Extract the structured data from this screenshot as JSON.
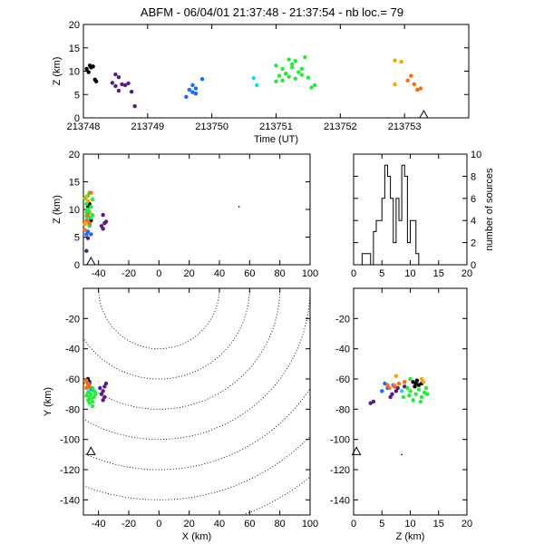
{
  "title": "ABFM - 06/04/01 21:37:48 - 21:37:54 - nb loc.=      79",
  "colors": {
    "black": "#000000",
    "purple": "#5a1a8a",
    "blue": "#1a6aff",
    "cyan": "#11ddee",
    "green": "#22ee33",
    "orange": "#ffa000",
    "red_orange": "#ff6a10"
  },
  "chart_data": [
    {
      "type": "scatter",
      "title": "",
      "xlabel": "Time (UT)",
      "ylabel": "Z (km)",
      "xlim": [
        213748,
        213754
      ],
      "ylim": [
        0,
        20
      ],
      "xticks": [
        "213748",
        "213749",
        "213750",
        "213751",
        "213752",
        "213753"
      ],
      "yticks": [
        "0",
        "5",
        "10",
        "15",
        "20"
      ],
      "marker": {
        "x": 213753.3,
        "y": 0
      },
      "series": [
        {
          "color": "black",
          "points": [
            [
              213748.05,
              10.5
            ],
            [
              213748.1,
              11.2
            ],
            [
              213748.15,
              11
            ],
            [
              213748.12,
              10.8
            ],
            [
              213748.08,
              9.8
            ],
            [
              213748.2,
              7.8
            ],
            [
              213748.18,
              8.2
            ]
          ]
        },
        {
          "color": "purple",
          "points": [
            [
              213748.5,
              9.3
            ],
            [
              213748.55,
              8.7
            ],
            [
              213748.45,
              7.5
            ],
            [
              213748.6,
              7.2
            ],
            [
              213748.5,
              6.8
            ],
            [
              213748.65,
              7
            ],
            [
              213748.7,
              7.4
            ],
            [
              213748.55,
              5.8
            ],
            [
              213748.75,
              5.6
            ],
            [
              213748.8,
              2.5
            ]
          ]
        },
        {
          "color": "blue",
          "points": [
            [
              213749.7,
              7
            ],
            [
              213749.75,
              6.3
            ],
            [
              213749.65,
              6
            ],
            [
              213749.7,
              5.5
            ],
            [
              213749.75,
              5.2
            ],
            [
              213749.85,
              8.3
            ],
            [
              213749.6,
              4.5
            ]
          ]
        },
        {
          "color": "cyan",
          "points": [
            [
              213750.65,
              8.5
            ],
            [
              213750.7,
              7
            ]
          ]
        },
        {
          "color": "green",
          "points": [
            [
              213751.2,
              12.5
            ],
            [
              213751.3,
              12.2
            ],
            [
              213751.45,
              13
            ],
            [
              213751.0,
              11.2
            ],
            [
              213751.1,
              10.5
            ],
            [
              213751.25,
              10.8
            ],
            [
              213751.35,
              9.8
            ],
            [
              213751.15,
              9.5
            ],
            [
              213751.05,
              9
            ],
            [
              213751.4,
              9.2
            ],
            [
              213751.5,
              8.6
            ],
            [
              213751.3,
              8.4
            ],
            [
              213751.2,
              8.8
            ],
            [
              213751.6,
              7
            ],
            [
              213751.55,
              6.5
            ],
            [
              213751.0,
              7.8
            ],
            [
              213751.1,
              8
            ],
            [
              213751.4,
              10.5
            ],
            [
              213751.25,
              11.5
            ]
          ]
        },
        {
          "color": "orange",
          "points": [
            [
              213752.85,
              12.3
            ],
            [
              213752.95,
              12
            ],
            [
              213752.85,
              7.2
            ]
          ]
        },
        {
          "color": "red_orange",
          "points": [
            [
              213753.1,
              9
            ],
            [
              213753.05,
              8
            ],
            [
              213753.15,
              7.2
            ],
            [
              213753.2,
              6
            ],
            [
              213753.25,
              6.3
            ]
          ]
        }
      ]
    },
    {
      "type": "scatter",
      "title": "",
      "xlabel": "",
      "ylabel": "Z (km)",
      "xlim": [
        -50,
        100
      ],
      "ylim": [
        0,
        20
      ],
      "xticks": [
        "-40",
        "-20",
        "0",
        "20",
        "40",
        "60",
        "80",
        "100"
      ],
      "yticks": [
        "0",
        "5",
        "10",
        "15",
        "20"
      ],
      "marker": {
        "x": -45,
        "y": 0
      },
      "series": [
        {
          "color": "black",
          "points": [
            [
              -47,
              10.5
            ],
            [
              -46,
              11
            ],
            [
              -45,
              8
            ]
          ]
        },
        {
          "color": "purple",
          "points": [
            [
              -37,
              9
            ],
            [
              -36,
              7.5
            ],
            [
              -38,
              7
            ],
            [
              -35,
              7.8
            ],
            [
              -37,
              6.5
            ],
            [
              -47,
              4.8
            ],
            [
              -48,
              2.5
            ],
            [
              -46,
              7.2
            ]
          ]
        },
        {
          "color": "blue",
          "points": [
            [
              -46,
              7
            ],
            [
              -47,
              6
            ],
            [
              -45,
              5.5
            ],
            [
              -48,
              5.5
            ]
          ]
        },
        {
          "color": "cyan",
          "points": [
            [
              -47,
              8.5
            ]
          ]
        },
        {
          "color": "green",
          "points": [
            [
              -47,
              12.5
            ],
            [
              -46,
              13
            ],
            [
              -44,
              11.8
            ],
            [
              -48,
              11
            ],
            [
              -45,
              10.5
            ],
            [
              -47,
              10
            ],
            [
              -46,
              9.5
            ],
            [
              -44,
              9
            ],
            [
              -48,
              8.8
            ],
            [
              -45,
              8.5
            ],
            [
              -47,
              7.8
            ],
            [
              -46,
              7
            ],
            [
              -49,
              12
            ],
            [
              -48,
              9.5
            ]
          ]
        },
        {
          "color": "orange",
          "points": [
            [
              -48,
              12.3
            ],
            [
              -47,
              11.5
            ],
            [
              -49,
              7.3
            ]
          ]
        },
        {
          "color": "red_orange",
          "points": [
            [
              -47,
              9
            ],
            [
              -48,
              8
            ],
            [
              -46,
              7.5
            ],
            [
              -49,
              6.3
            ],
            [
              -45,
              13
            ]
          ]
        }
      ],
      "extra_points": [
        {
          "color": "black",
          "x": 53,
          "y": 10.5
        }
      ]
    },
    {
      "type": "bar",
      "title": "",
      "xlabel": "",
      "ylabel": "number of sources",
      "xlim": [
        0,
        20
      ],
      "ylim": [
        0,
        10
      ],
      "xticks": [
        "0",
        "5",
        "10",
        "15",
        "20"
      ],
      "yticks": [
        "0",
        "2",
        "4",
        "6",
        "8",
        "10"
      ],
      "bin_width": 0.5,
      "bins_start": 1.5,
      "values": [
        1,
        1,
        1,
        0,
        3,
        4,
        4,
        6,
        9,
        8,
        6,
        2,
        6,
        4,
        9,
        8,
        2,
        4,
        4,
        1
      ]
    },
    {
      "type": "scatter",
      "title": "",
      "xlabel": "X (km)",
      "ylabel": "Y (km)",
      "xlim": [
        -50,
        100
      ],
      "ylim": [
        -150,
        0
      ],
      "xticks": [
        "-40",
        "-20",
        "0",
        "20",
        "40",
        "60",
        "80",
        "100"
      ],
      "yticks": [
        "-140",
        "-120",
        "-100",
        "-80",
        "-60",
        "-40",
        "-20"
      ],
      "marker": {
        "x": -45,
        "y": -110
      },
      "range_rings_km": [
        40,
        60,
        80,
        100,
        120,
        140,
        160
      ],
      "ring_center": {
        "x": 0,
        "y": 0
      },
      "series": [
        {
          "color": "black",
          "points": [
            [
              -47,
              -60
            ],
            [
              -46,
              -62
            ]
          ]
        },
        {
          "color": "purple",
          "points": [
            [
              -36,
              -65
            ],
            [
              -37,
              -68
            ],
            [
              -38,
              -70
            ],
            [
              -36,
              -72
            ],
            [
              -39,
              -66
            ],
            [
              -35,
              -63
            ],
            [
              -37,
              -74
            ]
          ]
        },
        {
          "color": "blue",
          "points": [
            [
              -46,
              -63
            ],
            [
              -47,
              -65
            ],
            [
              -45,
              -67
            ]
          ]
        },
        {
          "color": "cyan",
          "points": [
            [
              -46,
              -68
            ]
          ]
        },
        {
          "color": "green",
          "points": [
            [
              -44,
              -66
            ],
            [
              -45,
              -70
            ],
            [
              -46,
              -72
            ],
            [
              -47,
              -74
            ],
            [
              -43,
              -68
            ],
            [
              -44,
              -75
            ],
            [
              -46,
              -76
            ],
            [
              -45,
              -73
            ],
            [
              -47,
              -69
            ],
            [
              -48,
              -71
            ],
            [
              -43,
              -72
            ],
            [
              -44,
              -78
            ],
            [
              -42,
              -70
            ]
          ]
        },
        {
          "color": "orange",
          "points": [
            [
              -48,
              -62
            ],
            [
              -47,
              -64
            ]
          ]
        },
        {
          "color": "red_orange",
          "points": [
            [
              -48,
              -61
            ],
            [
              -47,
              -63
            ],
            [
              -46,
              -65
            ],
            [
              -48,
              -66
            ]
          ]
        }
      ]
    },
    {
      "type": "scatter",
      "title": "",
      "xlabel": "Z (km)",
      "ylabel": "",
      "xlim": [
        0,
        20
      ],
      "ylim": [
        -150,
        0
      ],
      "xticks": [
        "0",
        "5",
        "10",
        "15",
        "20"
      ],
      "yticks": [
        "-140",
        "-120",
        "-100",
        "-80",
        "-60",
        "-40",
        "-20"
      ],
      "marker": {
        "x": 0.5,
        "y": -110
      },
      "series": [
        {
          "color": "black",
          "points": [
            [
              10.5,
              -62
            ],
            [
              11,
              -63
            ],
            [
              11.5,
              -64
            ],
            [
              10.8,
              -65
            ],
            [
              11.2,
              -61
            ],
            [
              12,
              -63
            ]
          ]
        },
        {
          "color": "purple",
          "points": [
            [
              7.2,
              -65
            ],
            [
              7.5,
              -68
            ],
            [
              6.8,
              -70
            ],
            [
              3.5,
              -75
            ],
            [
              3,
              -76
            ],
            [
              6.5,
              -72
            ],
            [
              7.8,
              -66
            ],
            [
              9,
              -65
            ]
          ]
        },
        {
          "color": "blue",
          "points": [
            [
              5.5,
              -63
            ],
            [
              6,
              -66
            ],
            [
              5,
              -68
            ],
            [
              7,
              -64
            ]
          ]
        },
        {
          "color": "cyan",
          "points": [
            [
              8.5,
              -68
            ]
          ]
        },
        {
          "color": "green",
          "points": [
            [
              9,
              -62
            ],
            [
              9.5,
              -66
            ],
            [
              10,
              -68
            ],
            [
              11,
              -70
            ],
            [
              12,
              -72
            ],
            [
              12.5,
              -69
            ],
            [
              10.5,
              -74
            ],
            [
              9.8,
              -71
            ],
            [
              11.5,
              -67
            ],
            [
              13,
              -70
            ],
            [
              8.8,
              -72
            ],
            [
              10,
              -60
            ],
            [
              12.8,
              -66
            ],
            [
              11.8,
              -75
            ]
          ]
        },
        {
          "color": "orange",
          "points": [
            [
              7.5,
              -58
            ],
            [
              12.3,
              -62
            ],
            [
              12,
              -60
            ],
            [
              7.2,
              -64
            ]
          ]
        },
        {
          "color": "red_orange",
          "points": [
            [
              8,
              -63
            ],
            [
              9,
              -62
            ],
            [
              6,
              -64
            ],
            [
              6.3,
              -66
            ],
            [
              7.2,
              -65
            ]
          ]
        }
      ],
      "extra_points": [
        {
          "color": "black",
          "x": 8.5,
          "y": -110
        }
      ]
    }
  ]
}
